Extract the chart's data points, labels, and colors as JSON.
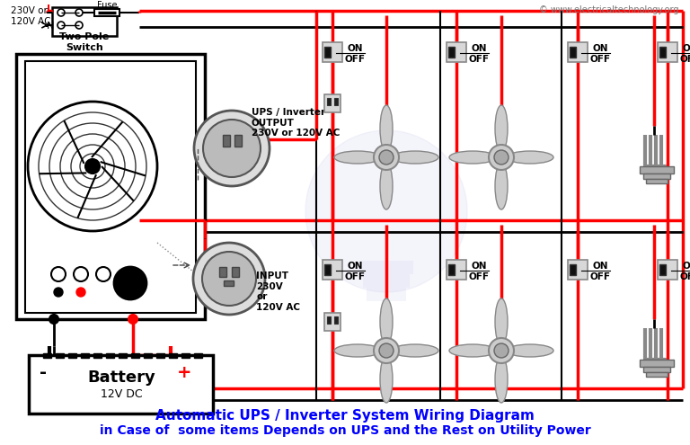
{
  "title_line1": "Automatic UPS / Inverter System Wiring Diagram",
  "title_line2": "in Case of  some items Depends on UPS and the Rest on Utility Power",
  "title_color": "#0000FF",
  "watermark": "© www.electricaltechnology.org",
  "bg_color": "#FFFFFF",
  "wire_red": "#FF0000",
  "wire_black": "#000000",
  "title_fontsize": 11,
  "watermark_fontsize": 7,
  "small_fontsize": 7.5
}
